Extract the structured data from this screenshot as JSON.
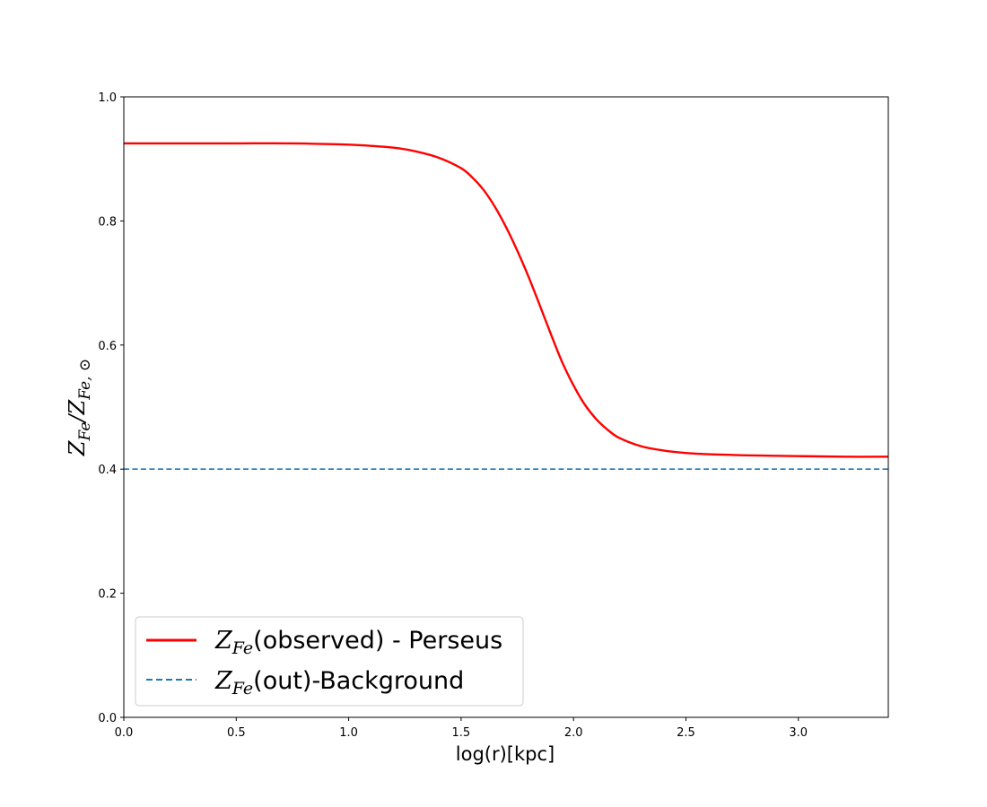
{
  "chart_data": {
    "type": "line",
    "xlabel": "log(r)[kpc]",
    "ylabel": {
      "base1": "Z",
      "sub1": "Fe",
      "sep": "/",
      "base2": "Z",
      "sub2": "Fe, ⊙"
    },
    "xlim": [
      0,
      3.4
    ],
    "ylim": [
      0,
      1.0
    ],
    "x_ticks": [
      0.0,
      0.5,
      1.0,
      1.5,
      2.0,
      2.5,
      3.0
    ],
    "x_tick_labels": [
      "0.0",
      "0.5",
      "1.0",
      "1.5",
      "2.0",
      "2.5",
      "3.0"
    ],
    "y_ticks": [
      0.0,
      0.2,
      0.4,
      0.6,
      0.8,
      1.0
    ],
    "y_tick_labels": [
      "0.0",
      "0.2",
      "0.4",
      "0.6",
      "0.8",
      "1.0"
    ],
    "grid": false,
    "legend_position": "lower-left",
    "series": [
      {
        "name": "Z_Fe(observed) - Perseus",
        "legend_base": "Z",
        "legend_sub": "Fe",
        "legend_rest": "(observed) - Perseus",
        "color": "#ff0000",
        "style": "solid",
        "x": [
          0.0,
          0.25,
          0.5,
          0.75,
          1.0,
          1.1,
          1.2,
          1.3,
          1.4,
          1.5,
          1.55,
          1.6,
          1.65,
          1.7,
          1.75,
          1.8,
          1.85,
          1.9,
          1.95,
          2.0,
          2.05,
          2.1,
          2.15,
          2.2,
          2.3,
          2.4,
          2.5,
          2.6,
          2.7,
          2.8,
          3.0,
          3.2,
          3.4
        ],
        "y": [
          0.925,
          0.925,
          0.925,
          0.925,
          0.923,
          0.921,
          0.918,
          0.912,
          0.902,
          0.885,
          0.87,
          0.85,
          0.823,
          0.79,
          0.752,
          0.71,
          0.664,
          0.617,
          0.572,
          0.535,
          0.504,
          0.481,
          0.464,
          0.451,
          0.437,
          0.43,
          0.426,
          0.424,
          0.423,
          0.422,
          0.421,
          0.42,
          0.42
        ]
      },
      {
        "name": "Z_Fe(out)-Background",
        "legend_base": "Z",
        "legend_sub": "Fe",
        "legend_rest": "(out)-Background",
        "color": "#1f77b4",
        "style": "dashed",
        "x": [
          0.0,
          3.4
        ],
        "y": [
          0.4,
          0.4
        ]
      }
    ]
  }
}
